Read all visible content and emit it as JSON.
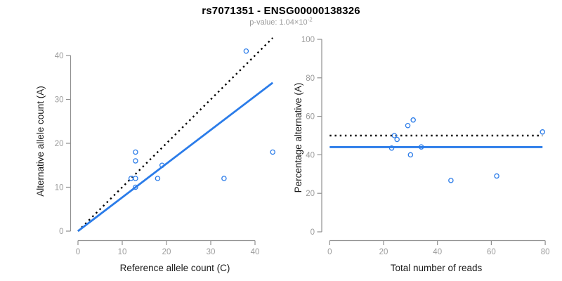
{
  "header": {
    "title": "rs7071351 - ENSG00000138326",
    "subtitle_prefix": "p-value: 1.04×10",
    "subtitle_exponent": "-2"
  },
  "colors": {
    "accent_blue": "#2b7ce9",
    "line_black": "#000000",
    "axis_gray": "#8f8f8f",
    "tick_label_gray": "#9b9b9b",
    "axis_title_black": "#1a1a1a"
  },
  "chart_data": [
    {
      "type": "scatter",
      "name": "allele-counts-scatter",
      "xlabel": "Reference allele count (C)",
      "ylabel": "Alternative allele count (A)",
      "xlim": [
        0,
        44
      ],
      "ylim": [
        0,
        44
      ],
      "xticks": [
        0,
        10,
        20,
        30,
        40
      ],
      "yticks": [
        0,
        10,
        20,
        30,
        40
      ],
      "grid": false,
      "legend": "none",
      "points": [
        [
          12,
          12
        ],
        [
          13,
          10
        ],
        [
          13,
          12
        ],
        [
          13,
          16
        ],
        [
          13,
          18
        ],
        [
          18,
          12
        ],
        [
          19,
          15
        ],
        [
          33,
          12
        ],
        [
          38,
          41
        ],
        [
          44,
          18
        ]
      ],
      "lines": [
        {
          "name": "identity-line",
          "description": "y = x expected under no imbalance",
          "style": "dotted",
          "color": "#000000",
          "x": [
            0,
            44
          ],
          "y": [
            0,
            44
          ]
        },
        {
          "name": "fit-line",
          "description": "observed allelic ratio fit",
          "style": "solid",
          "color": "#2b7ce9",
          "x": [
            0,
            44
          ],
          "y": [
            0,
            33.8
          ]
        }
      ]
    },
    {
      "type": "scatter",
      "name": "percentage-vs-reads-scatter",
      "xlabel": "Total number of reads",
      "ylabel": "Percentage alternative (A)",
      "xlim": [
        0,
        80
      ],
      "ylim": [
        0,
        100
      ],
      "xticks": [
        0,
        20,
        40,
        60,
        80
      ],
      "yticks": [
        0,
        20,
        40,
        60,
        80,
        100
      ],
      "grid": false,
      "legend": "none",
      "points": [
        [
          23,
          43.5
        ],
        [
          24,
          50
        ],
        [
          25,
          48
        ],
        [
          29,
          55.2
        ],
        [
          30,
          40
        ],
        [
          31,
          58.1
        ],
        [
          34,
          44.1
        ],
        [
          45,
          26.7
        ],
        [
          62,
          29
        ],
        [
          79,
          51.9
        ]
      ],
      "lines": [
        {
          "name": "expected-50pct-line",
          "description": "50% expected line",
          "style": "dotted",
          "color": "#000000",
          "x": [
            0,
            79
          ],
          "y": [
            50,
            50
          ]
        },
        {
          "name": "mean-pct-line",
          "description": "overall observed percentage",
          "style": "solid",
          "color": "#2b7ce9",
          "x": [
            0,
            79
          ],
          "y": [
            44,
            44
          ]
        }
      ]
    }
  ]
}
